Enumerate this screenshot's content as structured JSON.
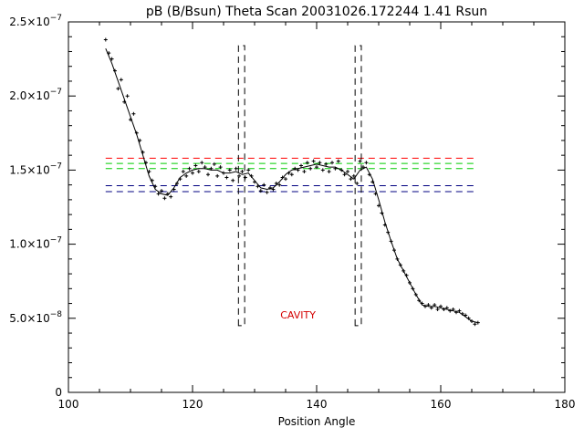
{
  "chart_data": {
    "type": "scatter",
    "title": "pB (B/Bsun) Theta Scan 20031026.172244 1.41 Rsun",
    "xlabel": "Position Angle",
    "ylabel": "",
    "xlim": [
      100,
      180
    ],
    "ylim": [
      0,
      2.5e-07
    ],
    "x_ticks": [
      {
        "value": 100,
        "label": "100"
      },
      {
        "value": 120,
        "label": "120"
      },
      {
        "value": 140,
        "label": "140"
      },
      {
        "value": 160,
        "label": "160"
      },
      {
        "value": 180,
        "label": "180"
      }
    ],
    "y_ticks": [
      {
        "value": 0,
        "mantissa": "0",
        "exp": ""
      },
      {
        "value": 5e-08,
        "mantissa": "5.0×10",
        "exp": "−8"
      },
      {
        "value": 1e-07,
        "mantissa": "1.0×10",
        "exp": "−7"
      },
      {
        "value": 1.5e-07,
        "mantissa": "1.5×10",
        "exp": "−7"
      },
      {
        "value": 2e-07,
        "mantissa": "2.0×10",
        "exp": "−7"
      },
      {
        "value": 2.5e-07,
        "mantissa": "2.5×10",
        "exp": "−7"
      }
    ],
    "annotation": {
      "text": "CAVITY",
      "x": 137,
      "y": 5e-08,
      "color": "#d40000"
    },
    "smooth_curve": {
      "x": [
        106,
        107,
        108,
        109,
        110,
        111,
        112,
        113,
        114,
        115,
        116,
        117,
        118,
        119,
        120,
        121,
        122,
        123,
        124,
        125,
        126,
        127,
        128,
        129,
        130,
        131,
        132,
        133,
        134,
        135,
        136,
        137,
        138,
        139,
        140,
        141,
        142,
        143,
        144,
        145,
        146,
        147,
        148,
        149,
        150,
        151,
        152,
        153,
        154,
        155,
        156,
        157,
        158,
        159,
        160,
        161,
        162,
        163,
        164,
        165,
        166
      ],
      "y": [
        2.32e-07,
        2.22e-07,
        2.1e-07,
        1.98e-07,
        1.86e-07,
        1.74e-07,
        1.6e-07,
        1.46e-07,
        1.37e-07,
        1.34e-07,
        1.33e-07,
        1.38e-07,
        1.45e-07,
        1.48e-07,
        1.5e-07,
        1.51e-07,
        1.51e-07,
        1.5e-07,
        1.5e-07,
        1.48e-07,
        1.48e-07,
        1.49e-07,
        1.47e-07,
        1.48e-07,
        1.43e-07,
        1.38e-07,
        1.37e-07,
        1.38e-07,
        1.42e-07,
        1.47e-07,
        1.5e-07,
        1.51e-07,
        1.52e-07,
        1.53e-07,
        1.54e-07,
        1.53e-07,
        1.52e-07,
        1.52e-07,
        1.5e-07,
        1.47e-07,
        1.44e-07,
        1.5e-07,
        1.52e-07,
        1.44e-07,
        1.3e-07,
        1.15e-07,
        1.02e-07,
        9e-08,
        8.2e-08,
        7.4e-08,
        6.6e-08,
        5.9e-08,
        5.8e-08,
        5.8e-08,
        5.7e-08,
        5.6e-08,
        5.5e-08,
        5.4e-08,
        5.1e-08,
        4.8e-08,
        4.7e-08
      ]
    },
    "threshold_lines": [
      {
        "y": 1.58e-07,
        "color": "#ff0000"
      },
      {
        "y": 1.545e-07,
        "color": "#00cc00"
      },
      {
        "y": 1.51e-07,
        "color": "#00cc00"
      },
      {
        "y": 1.395e-07,
        "color": "#000080"
      },
      {
        "y": 1.355e-07,
        "color": "#000080"
      }
    ],
    "cavity_bounds": [
      {
        "x0": 127.4,
        "x1": 128.4,
        "y_top": 2.34e-07,
        "y_bottom": 4.5e-08
      },
      {
        "x0": 146.2,
        "x1": 147.2,
        "y_top": 2.34e-07,
        "y_bottom": 4.5e-08
      }
    ],
    "scatter": {
      "x": [
        106.0,
        106.5,
        107.0,
        107.5,
        108.0,
        108.5,
        109.0,
        109.5,
        110.0,
        110.5,
        111.0,
        111.5,
        112.0,
        112.5,
        113.0,
        113.5,
        114.0,
        114.5,
        115.0,
        115.5,
        116.0,
        116.5,
        117.0,
        117.5,
        118.0,
        118.5,
        119.0,
        119.5,
        120.0,
        120.5,
        121.0,
        121.5,
        122.0,
        122.5,
        123.0,
        123.5,
        124.0,
        124.5,
        125.0,
        125.5,
        126.0,
        126.5,
        127.0,
        127.5,
        128.0,
        128.5,
        129.0,
        129.5,
        130.0,
        130.5,
        131.0,
        131.5,
        132.0,
        132.5,
        133.0,
        133.5,
        134.0,
        134.5,
        135.0,
        135.5,
        136.0,
        136.5,
        137.0,
        137.5,
        138.0,
        138.5,
        139.0,
        139.5,
        140.0,
        140.5,
        141.0,
        141.5,
        142.0,
        142.5,
        143.0,
        143.5,
        144.0,
        144.5,
        145.0,
        145.5,
        146.0,
        146.5,
        147.0,
        147.5,
        148.0,
        148.5,
        149.0,
        149.5,
        150.0,
        150.5,
        151.0,
        151.5,
        152.0,
        152.5,
        153.0,
        153.5,
        154.0,
        154.5,
        155.0,
        155.5,
        156.0,
        156.5,
        157.0,
        157.5,
        158.0,
        158.5,
        159.0,
        159.5,
        160.0,
        160.5,
        161.0,
        161.5,
        162.0,
        162.5,
        163.0,
        163.5,
        164.0,
        164.5,
        165.0,
        165.5,
        166.0
      ],
      "y": [
        2.38e-07,
        2.29e-07,
        2.25e-07,
        2.17e-07,
        2.05e-07,
        2.11e-07,
        1.96e-07,
        2e-07,
        1.84e-07,
        1.88e-07,
        1.75e-07,
        1.7e-07,
        1.62e-07,
        1.55e-07,
        1.49e-07,
        1.43e-07,
        1.39e-07,
        1.34e-07,
        1.36e-07,
        1.31e-07,
        1.34e-07,
        1.32e-07,
        1.37e-07,
        1.41e-07,
        1.44e-07,
        1.49e-07,
        1.46e-07,
        1.51e-07,
        1.48e-07,
        1.53e-07,
        1.49e-07,
        1.55e-07,
        1.52e-07,
        1.47e-07,
        1.51e-07,
        1.54e-07,
        1.46e-07,
        1.52e-07,
        1.48e-07,
        1.45e-07,
        1.5e-07,
        1.43e-07,
        1.51e-07,
        1.46e-07,
        1.49e-07,
        1.45e-07,
        1.5e-07,
        1.46e-07,
        1.42e-07,
        1.39e-07,
        1.36e-07,
        1.4e-07,
        1.35e-07,
        1.38e-07,
        1.37e-07,
        1.41e-07,
        1.4e-07,
        1.45e-07,
        1.44e-07,
        1.48e-07,
        1.47e-07,
        1.51e-07,
        1.5e-07,
        1.53e-07,
        1.49e-07,
        1.55e-07,
        1.51e-07,
        1.56e-07,
        1.52e-07,
        1.55e-07,
        1.5e-07,
        1.54e-07,
        1.49e-07,
        1.55e-07,
        1.51e-07,
        1.56e-07,
        1.5e-07,
        1.47e-07,
        1.49e-07,
        1.44e-07,
        1.46e-07,
        1.41e-07,
        1.56e-07,
        1.52e-07,
        1.55e-07,
        1.47e-07,
        1.42e-07,
        1.34e-07,
        1.26e-07,
        1.21e-07,
        1.13e-07,
        1.08e-07,
        1.02e-07,
        9.6e-08,
        9e-08,
        8.6e-08,
        8.2e-08,
        7.9e-08,
        7.4e-08,
        7e-08,
        6.6e-08,
        6.2e-08,
        6e-08,
        5.8e-08,
        5.9e-08,
        5.7e-08,
        5.9e-08,
        5.6e-08,
        5.8e-08,
        5.6e-08,
        5.7e-08,
        5.5e-08,
        5.6e-08,
        5.4e-08,
        5.5e-08,
        5.3e-08,
        5.2e-08,
        5e-08,
        4.8e-08,
        4.6e-08,
        4.7e-08
      ]
    },
    "grid": false
  }
}
